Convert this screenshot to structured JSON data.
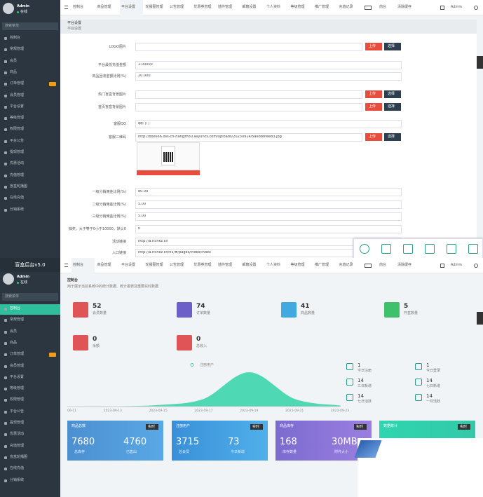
{
  "settings_page": {
    "sidebar": {
      "user": "Admin",
      "status": "在线",
      "search": "搜索菜单",
      "menu": [
        "控制台",
        "常规管理",
        "会员",
        "商品",
        "订单管理",
        "会员管理",
        "平台设置",
        "等级管理",
        "权限管理",
        "平台公告",
        "提现管理",
        "优惠活动",
        "充值管理",
        "盲盒轮播图",
        "在线充值",
        "分销系统"
      ]
    },
    "tabs": [
      "控制台",
      "商品管理",
      "平台设置",
      "轮播图管理",
      "公告管理",
      "优惠券管理",
      "插件管理",
      "邮箱设置",
      "个人资料",
      "等级管理",
      "推广管理",
      "充值记录"
    ],
    "top_right": [
      "前台",
      "清除缓存",
      "Admin"
    ],
    "panel": {
      "title": "平台设置",
      "subtitle": "平台设置"
    },
    "upload_label": "上传",
    "select_label": "选择",
    "rows": [
      {
        "label": "LOGO图片",
        "buttons": true
      },
      {
        "label": "平台最低充值金额",
        "value": "1.00000"
      },
      {
        "label": "商品回收金额比例(%)",
        "value": "20.000"
      },
      {
        "label": "热门盲盒背景图片",
        "buttons": true
      },
      {
        "label": "首页盲盒背景图片",
        "buttons": true
      },
      {
        "label": "客服QQ",
        "value": "qq门门"
      },
      {
        "label": "客服二维码",
        "value": "http://box666.oss-cn-hangzhou.aliyuncs.com/uploads/20230914/5ae8b8fee83.jpg",
        "buttons": true
      },
      {
        "label": "一级分销佣金比例(%)",
        "value": "80.00"
      },
      {
        "label": "二级分销佣金比例(%)",
        "value": "5.00"
      },
      {
        "label": "三级分销佣金比例(%)",
        "value": "5.00"
      },
      {
        "label": "抽奖，大于等于0小于10000，默认0",
        "value": "0"
      },
      {
        "label": "活动链接",
        "value": "http://a.h5hkz.cn"
      },
      {
        "label": "入口链接",
        "value": "http://a.h5hkz.cn/h5/#/pages/index/index"
      }
    ]
  },
  "dashboard_page": {
    "sidebar": {
      "brand": "盲盒后台v5.0",
      "user": "Admin",
      "status": "在线",
      "search": "搜索菜单",
      "menu": [
        "控制台",
        "常规管理",
        "会员",
        "商品",
        "订单管理",
        "会员管理",
        "平台设置",
        "等级管理",
        "权限管理",
        "平台公告",
        "提现管理",
        "优惠活动",
        "充值管理",
        "盲盒轮播图",
        "在线充值",
        "分销系统"
      ]
    },
    "tabs": [
      "控制台",
      "商品管理",
      "平台设置",
      "轮播图管理",
      "公告管理",
      "优惠券管理",
      "插件管理",
      "邮箱设置",
      "个人资料",
      "等级管理",
      "推广管理",
      "充值记录"
    ],
    "top_right": [
      "前台",
      "清除缓存",
      "Admin"
    ],
    "header": {
      "title": "控制台",
      "subtitle": "用于展示当前系统中的统计数据、统计报表及重要实时数据"
    },
    "stats": [
      {
        "value": 52,
        "label": "会员数量"
      },
      {
        "value": 74,
        "label": "订单数量"
      },
      {
        "value": 41,
        "label": "商品数量"
      },
      {
        "value": 5,
        "label": "开盒数量"
      },
      {
        "value": 0,
        "label": "余额"
      },
      {
        "value": 0,
        "label": "总收入"
      }
    ],
    "chart": {
      "type": "area",
      "legend": "注册用户",
      "categories": [
        "09-11",
        "2023-09-13",
        "2023-09-15",
        "2023-09-17",
        "2023-09-19",
        "2023-09-21",
        "2023-09-23"
      ],
      "values": [
        0,
        0,
        0.5,
        3,
        14,
        3,
        0.3
      ],
      "ylim": [
        0,
        15
      ],
      "color": "#4fd8b4"
    },
    "quick": [
      {
        "value": 1,
        "label": "今日注册"
      },
      {
        "value": 1,
        "label": "今日登录"
      },
      {
        "value": 14,
        "label": "三日新增"
      },
      {
        "value": 14,
        "label": "七日新增"
      },
      {
        "value": 14,
        "label": "七日活跃"
      },
      {
        "value": 14,
        "label": "一月活跃"
      }
    ],
    "cards": [
      {
        "title": "商品总数",
        "tag": "实时",
        "left": 7680,
        "left_label": "总库存",
        "right": 4760,
        "right_label": "已售出"
      },
      {
        "title": "注册用户",
        "tag": "实时",
        "left": 3715,
        "left_label": "总会员",
        "right": 73,
        "right_label": "今日新增"
      },
      {
        "title": "商品库存",
        "tag": "实时",
        "left": 168,
        "left_label": "库存数量",
        "right": "30MB",
        "right_label": "附件大小"
      },
      {
        "title": "数据统计",
        "tag": "实时"
      }
    ]
  }
}
